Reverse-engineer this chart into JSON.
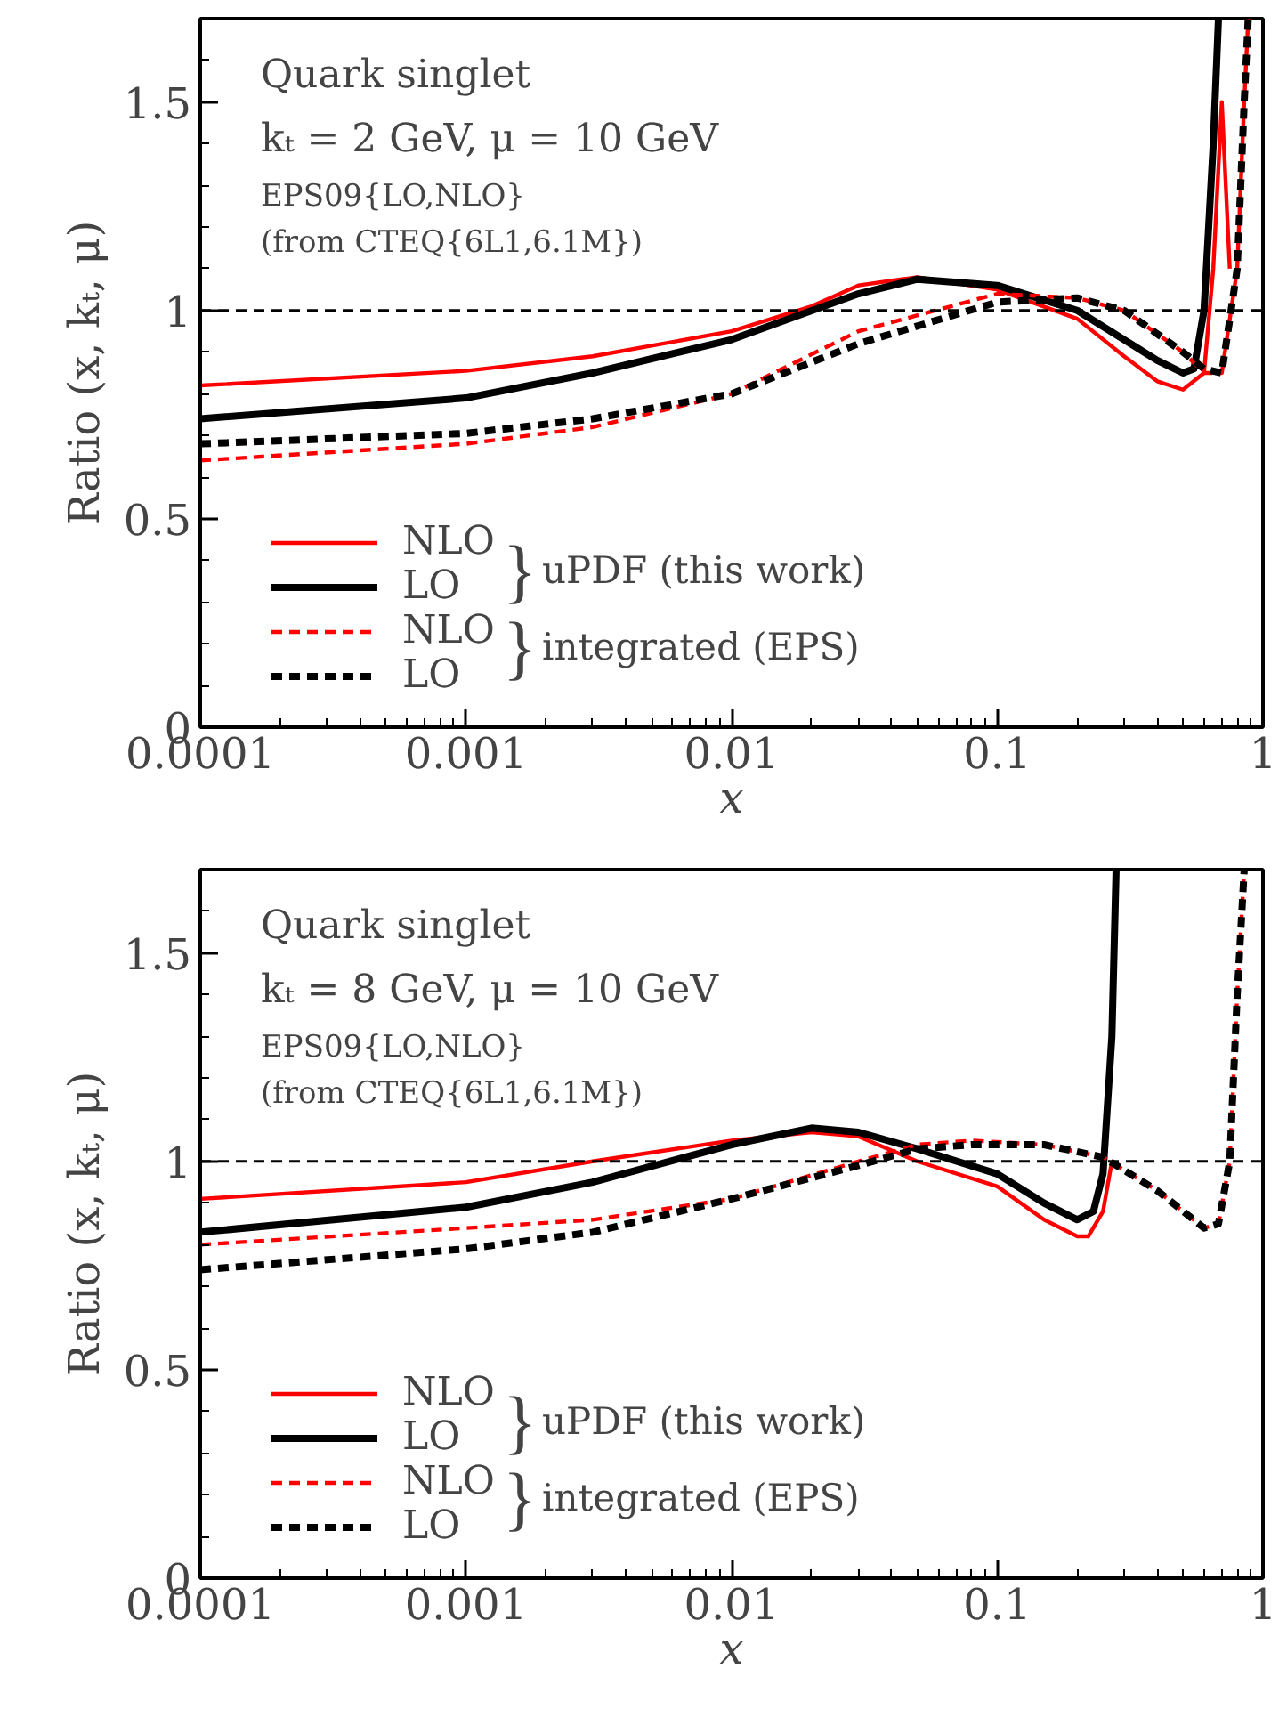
{
  "chart_data": [
    {
      "type": "line",
      "xlabel": "x",
      "ylabel": "Ratio (x, kₜ, μ)",
      "log": "x",
      "xlim": [
        0.0001,
        1
      ],
      "ylim": [
        0,
        1.7
      ],
      "xticks": [
        0.0001,
        0.001,
        0.01,
        0.1,
        1
      ],
      "yticks": [
        0,
        0.5,
        1,
        1.5
      ],
      "grid": false,
      "legend": "bottom left",
      "marker": "none",
      "annotations": [
        "Quark singlet",
        "kₜ = 2 GeV, μ = 10 GeV",
        "EPS09{LO,NLO}",
        "(from CTEQ{6L1,6.1M})",
        "uPDF (this work)",
        "integrated (EPS)",
        "}",
        "}"
      ],
      "ref_lines": [
        {
          "axis": "y",
          "value": 1,
          "color": "#000000",
          "line_style": "dashed"
        }
      ],
      "series": [
        {
          "name": "NLO",
          "color": "#ff0000",
          "line_style": "solid",
          "x": [
            0.0001,
            0.001,
            0.003,
            0.01,
            0.02,
            0.03,
            0.05,
            0.1,
            0.2,
            0.3,
            0.4,
            0.5,
            0.6,
            0.65,
            0.7,
            0.75
          ],
          "values": [
            0.82,
            0.855,
            0.89,
            0.95,
            1.01,
            1.06,
            1.08,
            1.05,
            0.98,
            0.89,
            0.83,
            0.81,
            0.85,
            1.1,
            1.5,
            1.1
          ]
        },
        {
          "name": "LO",
          "color": "#000000",
          "line_style": "solid",
          "x": [
            0.0001,
            0.001,
            0.003,
            0.01,
            0.03,
            0.05,
            0.1,
            0.2,
            0.3,
            0.4,
            0.5,
            0.55,
            0.6,
            0.65,
            0.68
          ],
          "values": [
            0.74,
            0.79,
            0.85,
            0.93,
            1.04,
            1.075,
            1.06,
            1.0,
            0.93,
            0.88,
            0.85,
            0.86,
            1.0,
            1.4,
            1.7
          ]
        },
        {
          "name": "NLO",
          "color": "#ff0000",
          "line_style": "dashed",
          "x": [
            0.0001,
            0.001,
            0.003,
            0.01,
            0.03,
            0.1,
            0.2,
            0.3,
            0.5,
            0.6,
            0.7,
            0.8,
            0.85,
            0.88
          ],
          "values": [
            0.64,
            0.68,
            0.72,
            0.8,
            0.95,
            1.04,
            1.03,
            1.0,
            0.9,
            0.85,
            0.85,
            1.1,
            1.5,
            1.7
          ]
        },
        {
          "name": "LO",
          "color": "#000000",
          "line_style": "dashed",
          "x": [
            0.0001,
            0.001,
            0.003,
            0.01,
            0.03,
            0.1,
            0.2,
            0.3,
            0.5,
            0.6,
            0.7,
            0.8,
            0.85,
            0.88
          ],
          "values": [
            0.68,
            0.705,
            0.74,
            0.8,
            0.92,
            1.02,
            1.03,
            1.0,
            0.9,
            0.86,
            0.85,
            1.1,
            1.5,
            1.7
          ]
        }
      ]
    },
    {
      "type": "line",
      "xlabel": "x",
      "ylabel": "Ratio (x, kₜ, μ)",
      "log": "x",
      "xlim": [
        0.0001,
        1
      ],
      "ylim": [
        0,
        1.7
      ],
      "xticks": [
        0.0001,
        0.001,
        0.01,
        0.1,
        1
      ],
      "yticks": [
        0,
        0.5,
        1,
        1.5
      ],
      "grid": false,
      "legend": "bottom left",
      "marker": "none",
      "annotations": [
        "Quark singlet",
        "kₜ = 8 GeV, μ = 10 GeV",
        "EPS09{LO,NLO}",
        "(from CTEQ{6L1,6.1M})",
        "uPDF (this work)",
        "integrated (EPS)",
        "}",
        "}"
      ],
      "ref_lines": [
        {
          "axis": "y",
          "value": 1,
          "color": "#000000",
          "line_style": "dashed"
        }
      ],
      "series": [
        {
          "name": "NLO",
          "color": "#ff0000",
          "line_style": "solid",
          "x": [
            0.0001,
            0.001,
            0.003,
            0.01,
            0.02,
            0.03,
            0.05,
            0.1,
            0.15,
            0.2,
            0.22,
            0.25,
            0.27
          ],
          "values": [
            0.91,
            0.95,
            1.0,
            1.05,
            1.07,
            1.06,
            1.0,
            0.94,
            0.86,
            0.82,
            0.82,
            0.88,
            1.0
          ]
        },
        {
          "name": "LO",
          "color": "#000000",
          "line_style": "solid",
          "x": [
            0.0001,
            0.001,
            0.003,
            0.01,
            0.02,
            0.03,
            0.05,
            0.1,
            0.15,
            0.2,
            0.23,
            0.25,
            0.27,
            0.28
          ],
          "values": [
            0.83,
            0.89,
            0.95,
            1.04,
            1.08,
            1.07,
            1.03,
            0.97,
            0.9,
            0.86,
            0.88,
            0.97,
            1.3,
            1.7
          ]
        },
        {
          "name": "NLO",
          "color": "#ff0000",
          "line_style": "dashed",
          "x": [
            0.0001,
            0.001,
            0.003,
            0.01,
            0.03,
            0.05,
            0.08,
            0.15,
            0.25,
            0.4,
            0.6,
            0.68,
            0.75,
            0.8,
            0.85
          ],
          "values": [
            0.8,
            0.84,
            0.86,
            0.91,
            1.0,
            1.04,
            1.05,
            1.04,
            1.01,
            0.93,
            0.84,
            0.85,
            1.0,
            1.4,
            1.7
          ]
        },
        {
          "name": "LO",
          "color": "#000000",
          "line_style": "dashed",
          "x": [
            0.0001,
            0.001,
            0.003,
            0.01,
            0.03,
            0.05,
            0.08,
            0.15,
            0.25,
            0.4,
            0.6,
            0.68,
            0.75,
            0.8,
            0.85
          ],
          "values": [
            0.74,
            0.79,
            0.83,
            0.91,
            0.99,
            1.03,
            1.04,
            1.04,
            1.01,
            0.93,
            0.84,
            0.85,
            1.0,
            1.4,
            1.7
          ]
        }
      ]
    }
  ]
}
